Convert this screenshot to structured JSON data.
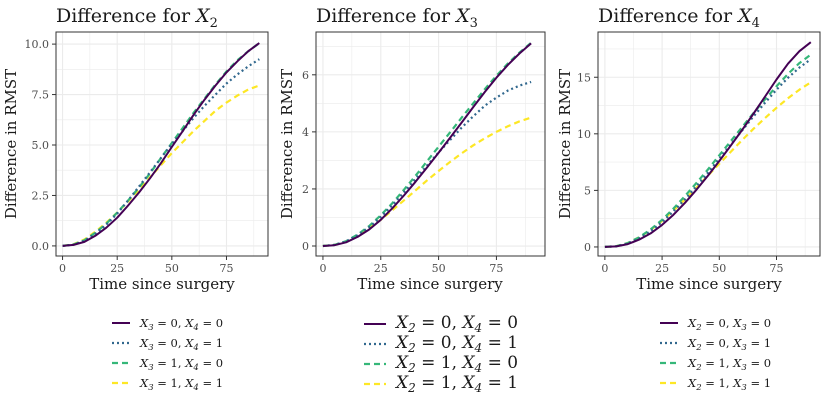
{
  "chart_data": [
    {
      "type": "line",
      "title_prefix": "Difference for ",
      "title_var": "X",
      "title_sub": "2",
      "xlabel": "Time since surgery",
      "ylabel": "Difference in RMST",
      "xlim": [
        -3,
        94
      ],
      "ylim": [
        -0.5,
        10.6
      ],
      "xticks": [
        "0",
        "25",
        "50",
        "75"
      ],
      "yticks": [
        "0.0",
        "2.5",
        "5.0",
        "7.5",
        "10.0"
      ],
      "x": [
        0,
        5,
        10,
        15,
        20,
        25,
        30,
        35,
        40,
        45,
        50,
        55,
        60,
        65,
        70,
        75,
        80,
        85,
        90
      ],
      "series": [
        {
          "name": "X3 = 0, X4 = 0",
          "values": [
            0.0,
            0.05,
            0.2,
            0.5,
            0.9,
            1.4,
            2.0,
            2.65,
            3.35,
            4.1,
            4.9,
            5.7,
            6.5,
            7.25,
            7.95,
            8.6,
            9.15,
            9.65,
            10.05
          ]
        },
        {
          "name": "X3 = 0, X4 = 1",
          "values": [
            0.0,
            0.06,
            0.25,
            0.6,
            1.05,
            1.6,
            2.25,
            2.95,
            3.65,
            4.35,
            5.05,
            5.7,
            6.35,
            6.95,
            7.5,
            8.05,
            8.5,
            8.9,
            9.25
          ]
        },
        {
          "name": "X3 = 1, X4 = 0",
          "values": [
            0.0,
            0.07,
            0.28,
            0.65,
            1.1,
            1.65,
            2.25,
            2.9,
            3.6,
            4.35,
            5.1,
            5.85,
            6.6,
            7.3,
            8.0,
            8.65,
            9.2,
            9.65,
            10.05
          ]
        },
        {
          "name": "X3 = 1, X4 = 1",
          "values": [
            0.0,
            0.08,
            0.32,
            0.7,
            1.15,
            1.65,
            2.2,
            2.8,
            3.4,
            4.0,
            4.6,
            5.15,
            5.7,
            6.2,
            6.7,
            7.1,
            7.45,
            7.75,
            7.95
          ]
        }
      ],
      "legend": {
        "var_a": "X",
        "sub_a": "3",
        "var_b": "X",
        "sub_b": "4",
        "entries": [
          [
            "0",
            "0"
          ],
          [
            "0",
            "1"
          ],
          [
            "1",
            "0"
          ],
          [
            "1",
            "1"
          ]
        ],
        "size": "small"
      }
    },
    {
      "type": "line",
      "title_prefix": "Difference for ",
      "title_var": "X",
      "title_sub": "3",
      "xlabel": "Time since surgery",
      "ylabel": "Difference in RMST",
      "xlim": [
        -3,
        96
      ],
      "ylim": [
        -0.35,
        7.5
      ],
      "xticks": [
        "0",
        "25",
        "50",
        "75"
      ],
      "yticks": [
        "0",
        "2",
        "4",
        "6"
      ],
      "x": [
        0,
        5,
        10,
        15,
        20,
        25,
        30,
        35,
        40,
        45,
        50,
        55,
        60,
        65,
        70,
        75,
        80,
        85,
        90
      ],
      "series": [
        {
          "name": "X2 = 0, X4 = 0",
          "values": [
            0.0,
            0.03,
            0.13,
            0.32,
            0.58,
            0.92,
            1.32,
            1.77,
            2.25,
            2.75,
            3.27,
            3.8,
            4.33,
            4.87,
            5.4,
            5.9,
            6.35,
            6.75,
            7.1
          ]
        },
        {
          "name": "X2 = 0, X4 = 1",
          "values": [
            0.0,
            0.04,
            0.16,
            0.38,
            0.66,
            1.02,
            1.43,
            1.88,
            2.35,
            2.82,
            3.28,
            3.72,
            4.15,
            4.55,
            4.92,
            5.2,
            5.45,
            5.62,
            5.75
          ]
        },
        {
          "name": "X2 = 1, X4 = 0",
          "values": [
            0.0,
            0.04,
            0.17,
            0.4,
            0.7,
            1.08,
            1.5,
            1.97,
            2.46,
            2.97,
            3.48,
            3.99,
            4.5,
            5.0,
            5.5,
            5.97,
            6.4,
            6.78,
            7.12
          ]
        },
        {
          "name": "X2 = 1, X4 = 1",
          "values": [
            0.0,
            0.04,
            0.16,
            0.36,
            0.62,
            0.92,
            1.25,
            1.6,
            1.95,
            2.3,
            2.63,
            2.95,
            3.25,
            3.53,
            3.78,
            4.0,
            4.2,
            4.37,
            4.5
          ]
        }
      ],
      "legend": {
        "var_a": "X",
        "sub_a": "2",
        "var_b": "X",
        "sub_b": "4",
        "entries": [
          [
            "0",
            "0"
          ],
          [
            "0",
            "1"
          ],
          [
            "1",
            "0"
          ],
          [
            "1",
            "1"
          ]
        ],
        "size": "big"
      }
    },
    {
      "type": "line",
      "title_prefix": "Difference for ",
      "title_var": "X",
      "title_sub": "4",
      "xlabel": "Time since surgery",
      "ylabel": "Difference in RMST",
      "xlim": [
        -3,
        94
      ],
      "ylim": [
        -0.8,
        19.0
      ],
      "xticks": [
        "0",
        "25",
        "50",
        "75"
      ],
      "yticks": [
        "0",
        "5",
        "10",
        "15"
      ],
      "x": [
        0,
        5,
        10,
        15,
        20,
        25,
        30,
        35,
        40,
        45,
        50,
        55,
        60,
        65,
        70,
        75,
        80,
        85,
        90
      ],
      "series": [
        {
          "name": "X2 = 0, X3 = 0",
          "values": [
            0.0,
            0.05,
            0.25,
            0.65,
            1.2,
            1.95,
            2.85,
            3.9,
            5.05,
            6.3,
            7.6,
            8.95,
            10.35,
            11.8,
            13.3,
            14.8,
            16.2,
            17.3,
            18.1
          ]
        },
        {
          "name": "X2 = 0, X3 = 1",
          "values": [
            0.0,
            0.06,
            0.3,
            0.75,
            1.4,
            2.2,
            3.15,
            4.2,
            5.35,
            6.55,
            7.8,
            9.05,
            10.3,
            11.55,
            12.75,
            13.9,
            14.95,
            15.85,
            16.6
          ]
        },
        {
          "name": "X2 = 1, X3 = 0",
          "values": [
            0.0,
            0.07,
            0.35,
            0.85,
            1.55,
            2.4,
            3.4,
            4.5,
            5.65,
            6.85,
            8.1,
            9.35,
            10.6,
            11.85,
            13.05,
            14.2,
            15.3,
            16.25,
            17.0
          ]
        },
        {
          "name": "X2 = 1, X3 = 1",
          "values": [
            0.0,
            0.07,
            0.35,
            0.85,
            1.5,
            2.3,
            3.2,
            4.2,
            5.25,
            6.3,
            7.35,
            8.4,
            9.45,
            10.45,
            11.4,
            12.3,
            13.15,
            13.9,
            14.55
          ]
        }
      ],
      "legend": {
        "var_a": "X",
        "sub_a": "2",
        "var_b": "X",
        "sub_b": "3",
        "entries": [
          [
            "0",
            "0"
          ],
          [
            "0",
            "1"
          ],
          [
            "1",
            "0"
          ],
          [
            "1",
            "1"
          ]
        ],
        "size": "small"
      }
    }
  ],
  "series_styles": [
    {
      "color": "#440154",
      "dash": "none",
      "width": 2.0
    },
    {
      "color": "#31688e",
      "dash": "2,3",
      "width": 2.2
    },
    {
      "color": "#35b779",
      "dash": "6,4",
      "width": 2.2
    },
    {
      "color": "#fde725",
      "dash": "6,4",
      "width": 2.2
    }
  ],
  "colors": {
    "grid": "#ebebeb",
    "panel_border": "#333333",
    "axis_text": "#4d4d4d"
  }
}
